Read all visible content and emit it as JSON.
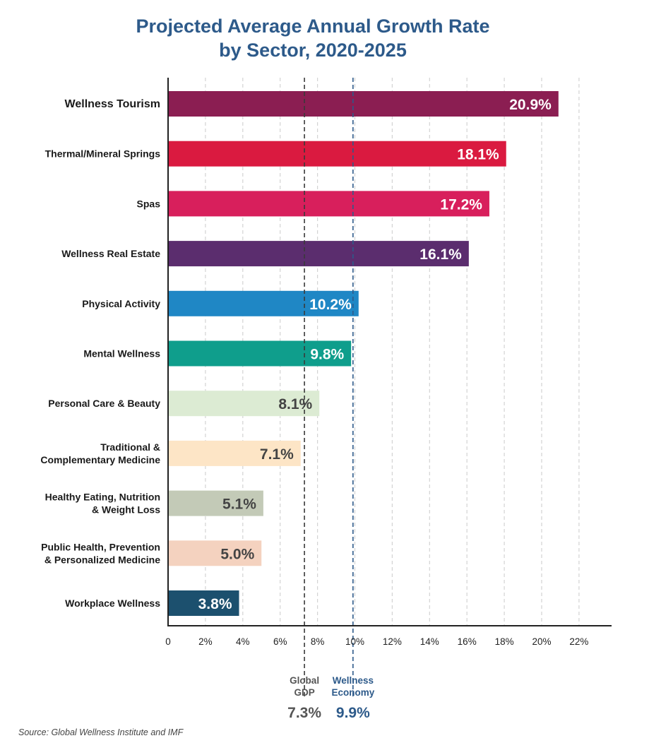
{
  "title_line1": "Projected Average Annual Growth Rate",
  "title_line2": "by Sector, 2020-2025",
  "source": "Source: Global Wellness Institute and IMF",
  "chart_data": {
    "type": "bar",
    "orientation": "horizontal",
    "title": "Projected Average Annual Growth Rate by Sector, 2020-2025",
    "xlim": [
      0,
      22
    ],
    "x_ticks": [
      "0",
      "2%",
      "4%",
      "6%",
      "8%",
      "10%",
      "12%",
      "14%",
      "16%",
      "18%",
      "20%",
      "22%"
    ],
    "grid": "vertical dashed",
    "categories": [
      [
        "Wellness Tourism"
      ],
      [
        "Thermal/Mineral Springs"
      ],
      [
        "Spas"
      ],
      [
        "Wellness Real Estate"
      ],
      [
        "Physical Activity"
      ],
      [
        "Mental Wellness"
      ],
      [
        "Personal Care & Beauty"
      ],
      [
        "Traditional &",
        "Complementary Medicine"
      ],
      [
        "Healthy Eating, Nutrition",
        "& Weight Loss"
      ],
      [
        "Public Health, Prevention",
        "& Personalized Medicine"
      ],
      [
        "Workplace Wellness"
      ]
    ],
    "values": [
      20.9,
      18.1,
      17.2,
      16.1,
      10.2,
      9.8,
      8.1,
      7.1,
      5.1,
      5.0,
      3.8
    ],
    "data_labels": [
      "20.9%",
      "18.1%",
      "17.2%",
      "16.1%",
      "10.2%",
      "9.8%",
      "8.1%",
      "7.1%",
      "5.1%",
      "5.0%",
      "3.8%"
    ],
    "colors": [
      "#8b1e52",
      "#da1a40",
      "#d81f5c",
      "#5b2d6e",
      "#1f87c5",
      "#0f9e8c",
      "#dcebd3",
      "#fde5c6",
      "#c3cab7",
      "#f4d2bf",
      "#1c506e"
    ],
    "label_colors": [
      "#ffffff",
      "#ffffff",
      "#ffffff",
      "#ffffff",
      "#ffffff",
      "#ffffff",
      "#444444",
      "#444444",
      "#444444",
      "#444444",
      "#ffffff"
    ],
    "reference_lines": [
      {
        "label_lines": [
          "Global",
          "GDP"
        ],
        "value": 7.3,
        "value_label": "7.3%",
        "color": "#3a3a3a",
        "label_color": "#555555"
      },
      {
        "label_lines": [
          "Wellness",
          "Economy"
        ],
        "value": 9.9,
        "value_label": "9.9%",
        "color": "#2d5a8a",
        "label_color": "#2d5a8a"
      }
    ]
  }
}
